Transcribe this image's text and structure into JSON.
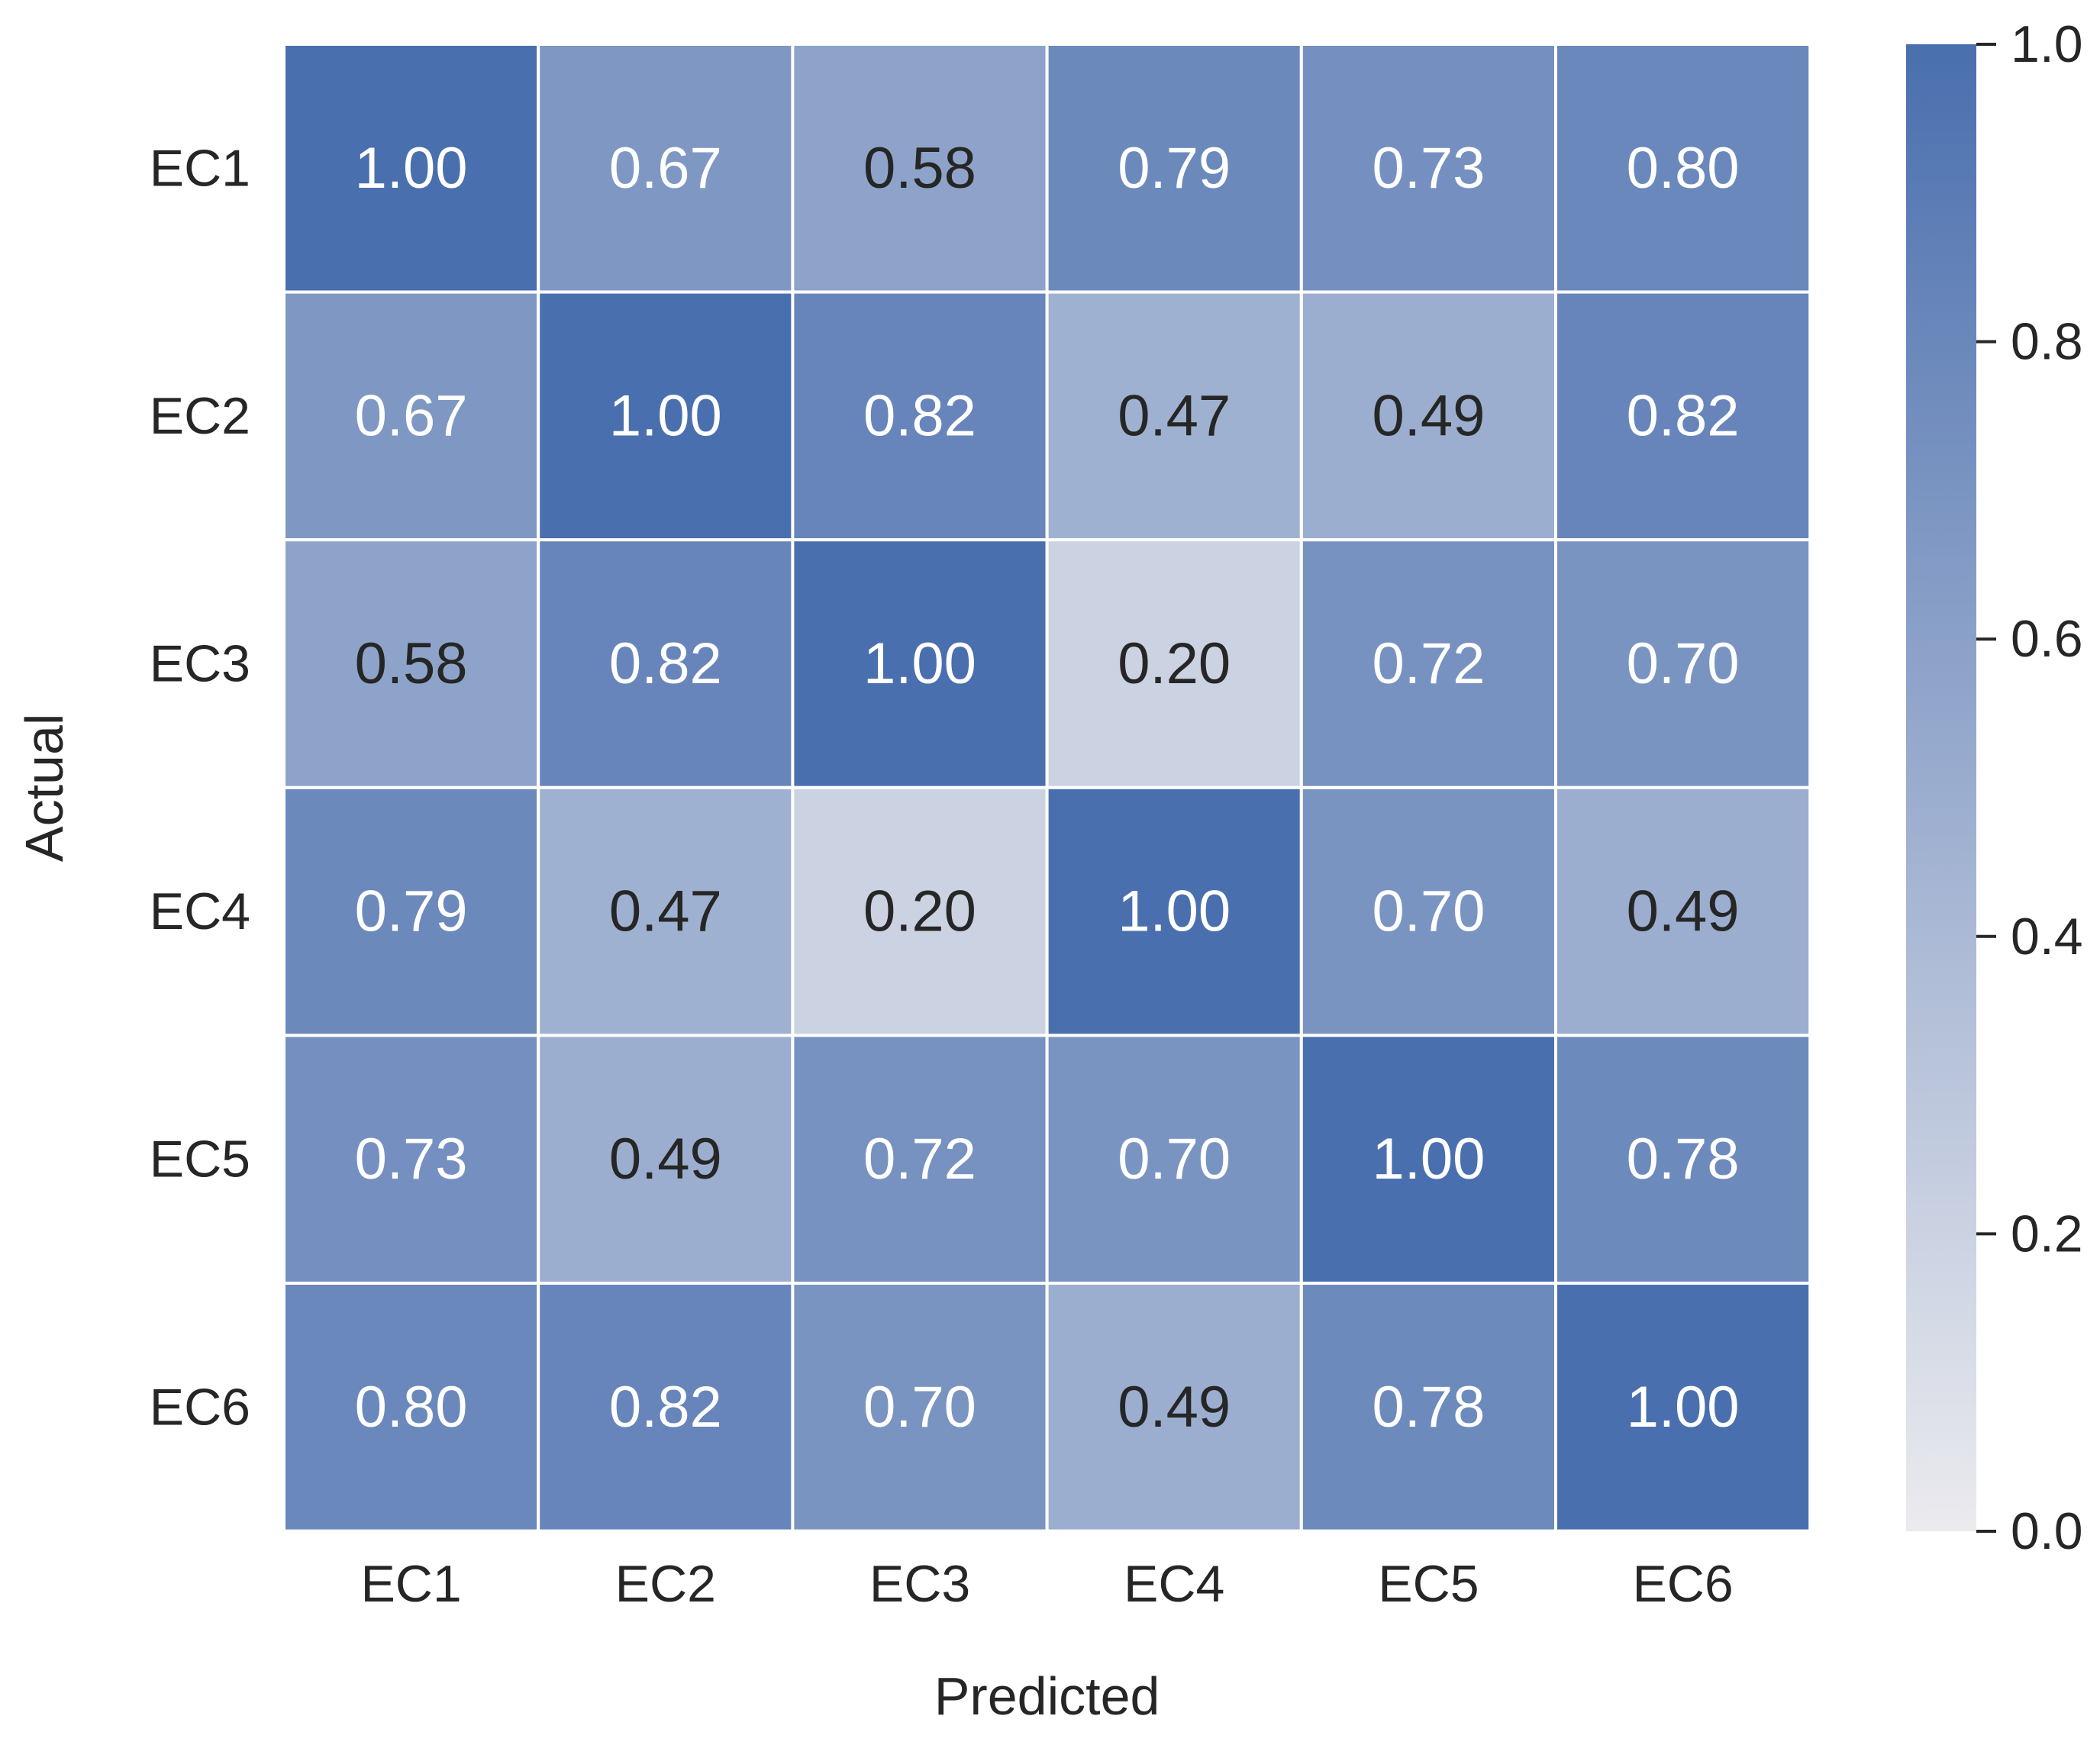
{
  "chart_data": {
    "type": "heatmap",
    "x_categories": [
      "EC1",
      "EC2",
      "EC3",
      "EC4",
      "EC5",
      "EC6"
    ],
    "y_categories": [
      "EC1",
      "EC2",
      "EC3",
      "EC4",
      "EC5",
      "EC6"
    ],
    "values": [
      [
        1.0,
        0.67,
        0.58,
        0.79,
        0.73,
        0.8
      ],
      [
        0.67,
        1.0,
        0.82,
        0.47,
        0.49,
        0.82
      ],
      [
        0.58,
        0.82,
        1.0,
        0.2,
        0.72,
        0.7
      ],
      [
        0.79,
        0.47,
        0.2,
        1.0,
        0.7,
        0.49
      ],
      [
        0.73,
        0.49,
        0.72,
        0.7,
        1.0,
        0.78
      ],
      [
        0.8,
        0.82,
        0.7,
        0.49,
        0.78,
        1.0
      ]
    ],
    "xlabel": "Predicted",
    "ylabel": "Actual",
    "colorbar": {
      "range": [
        0.0,
        1.0
      ],
      "ticks": [
        "0.0",
        "0.2",
        "0.4",
        "0.6",
        "0.8",
        "1.0"
      ],
      "color_low": "#ebebef",
      "color_high": "#4a6fae"
    },
    "annotation_text_colors": {
      "on_dark": "#ffffff",
      "on_light": "#262626"
    },
    "grid_line_color": "#ffffff"
  }
}
